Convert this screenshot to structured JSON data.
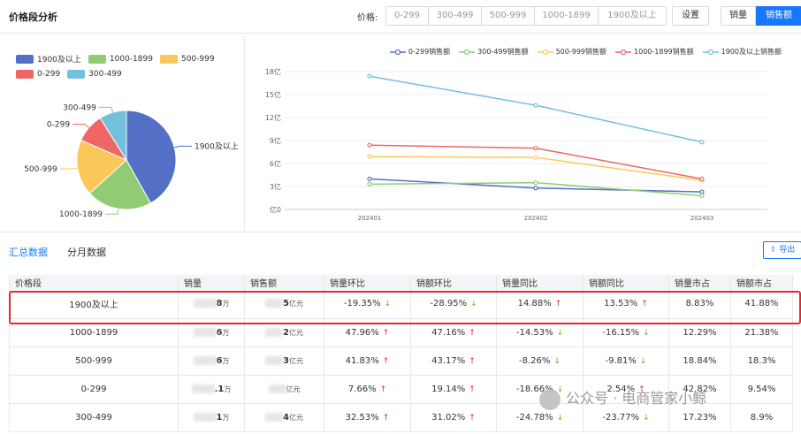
{
  "header": {
    "title": "价格段分析",
    "price_label": "价格:",
    "segments": [
      "0-299",
      "300-499",
      "500-999",
      "1000-1899",
      "1900及以上"
    ],
    "setting": "设置",
    "toggle_volume": "销量",
    "toggle_sales": "销售额"
  },
  "pie": {
    "legend": [
      {
        "label": "1900及以上",
        "color": "#5470c6"
      },
      {
        "label": "1000-1899",
        "color": "#91cc75"
      },
      {
        "label": "500-999",
        "color": "#fac858"
      },
      {
        "label": "0-299",
        "color": "#ee6666"
      },
      {
        "label": "300-499",
        "color": "#73c0de"
      }
    ]
  },
  "chart_data": {
    "type": "line",
    "x": [
      "202401",
      "202402",
      "202403"
    ],
    "ylabel": "",
    "yticks": [
      "亿0",
      "3亿",
      "6亿",
      "9亿",
      "12亿",
      "15亿",
      "18亿"
    ],
    "ylim": [
      0,
      18
    ],
    "series": [
      {
        "name": "0-299销售额",
        "color": "#5470c6",
        "values": [
          4.0,
          2.8,
          2.3
        ]
      },
      {
        "name": "300-499销售额",
        "color": "#91cc75",
        "values": [
          3.3,
          3.5,
          1.8
        ]
      },
      {
        "name": "500-999销售额",
        "color": "#fac858",
        "values": [
          6.9,
          6.8,
          3.8
        ]
      },
      {
        "name": "1000-1899销售额",
        "color": "#ee6666",
        "values": [
          8.4,
          8.0,
          4.0
        ]
      },
      {
        "name": "1900及以上销售额",
        "color": "#73c0de",
        "values": [
          17.4,
          13.6,
          8.8
        ]
      }
    ],
    "pie_values": [
      {
        "label": "1900及以上",
        "share": 41.88
      },
      {
        "label": "1000-1899",
        "share": 21.38
      },
      {
        "label": "500-999",
        "share": 18.3
      },
      {
        "label": "0-299",
        "share": 9.54
      },
      {
        "label": "300-499",
        "share": 8.9
      }
    ]
  },
  "tabs": {
    "summary": "汇总数据",
    "monthly": "分月数据",
    "export": "导出"
  },
  "table": {
    "headers": [
      "价格段",
      "销量",
      "销售额",
      "销量环比",
      "销额环比",
      "销量同比",
      "销额同比",
      "销量市占",
      "销额市占"
    ],
    "rows": [
      {
        "segment": "1900及以上",
        "vol_tail": "8",
        "vol_unit": "万",
        "amt_tail": "5",
        "amt_unit": "亿元",
        "vol_mom": "-19.35%",
        "vol_mom_dir": "down",
        "amt_mom": "-28.95%",
        "amt_mom_dir": "down",
        "vol_yoy": "14.88%",
        "vol_yoy_dir": "up",
        "amt_yoy": "13.53%",
        "amt_yoy_dir": "up",
        "vol_share": "8.83%",
        "amt_share": "41.88%"
      },
      {
        "segment": "1000-1899",
        "vol_tail": "6",
        "vol_unit": "万",
        "amt_tail": "2",
        "amt_unit": "亿元",
        "vol_mom": "47.96%",
        "vol_mom_dir": "up",
        "amt_mom": "47.16%",
        "amt_mom_dir": "up",
        "vol_yoy": "-14.53%",
        "vol_yoy_dir": "down",
        "amt_yoy": "-16.15%",
        "amt_yoy_dir": "down",
        "vol_share": "12.29%",
        "amt_share": "21.38%"
      },
      {
        "segment": "500-999",
        "vol_tail": "6",
        "vol_unit": "万",
        "amt_tail": "3",
        "amt_unit": "亿元",
        "vol_mom": "41.83%",
        "vol_mom_dir": "up",
        "amt_mom": "43.17%",
        "amt_mom_dir": "up",
        "vol_yoy": "-8.26%",
        "vol_yoy_dir": "down",
        "amt_yoy": "-9.81%",
        "amt_yoy_dir": "down",
        "vol_share": "18.84%",
        "amt_share": "18.3%"
      },
      {
        "segment": "0-299",
        "vol_tail": ".1",
        "vol_unit": "万",
        "amt_tail": "",
        "amt_unit": "亿元",
        "vol_mom": "7.66%",
        "vol_mom_dir": "up",
        "amt_mom": "19.14%",
        "amt_mom_dir": "up",
        "vol_yoy": "-18.66%",
        "vol_yoy_dir": "down",
        "amt_yoy": "2.54%",
        "amt_yoy_dir": "up",
        "vol_share": "42.82%",
        "amt_share": "9.54%"
      },
      {
        "segment": "300-499",
        "vol_tail": "1",
        "vol_unit": "万",
        "amt_tail": "4",
        "amt_unit": "亿元",
        "vol_mom": "32.53%",
        "vol_mom_dir": "up",
        "amt_mom": "31.02%",
        "amt_mom_dir": "up",
        "vol_yoy": "-24.78%",
        "vol_yoy_dir": "down",
        "amt_yoy": "-23.77%",
        "amt_yoy_dir": "down",
        "vol_share": "17.23%",
        "amt_share": "8.9%"
      }
    ]
  },
  "watermark": "公众号 · 电商管家小鲸"
}
